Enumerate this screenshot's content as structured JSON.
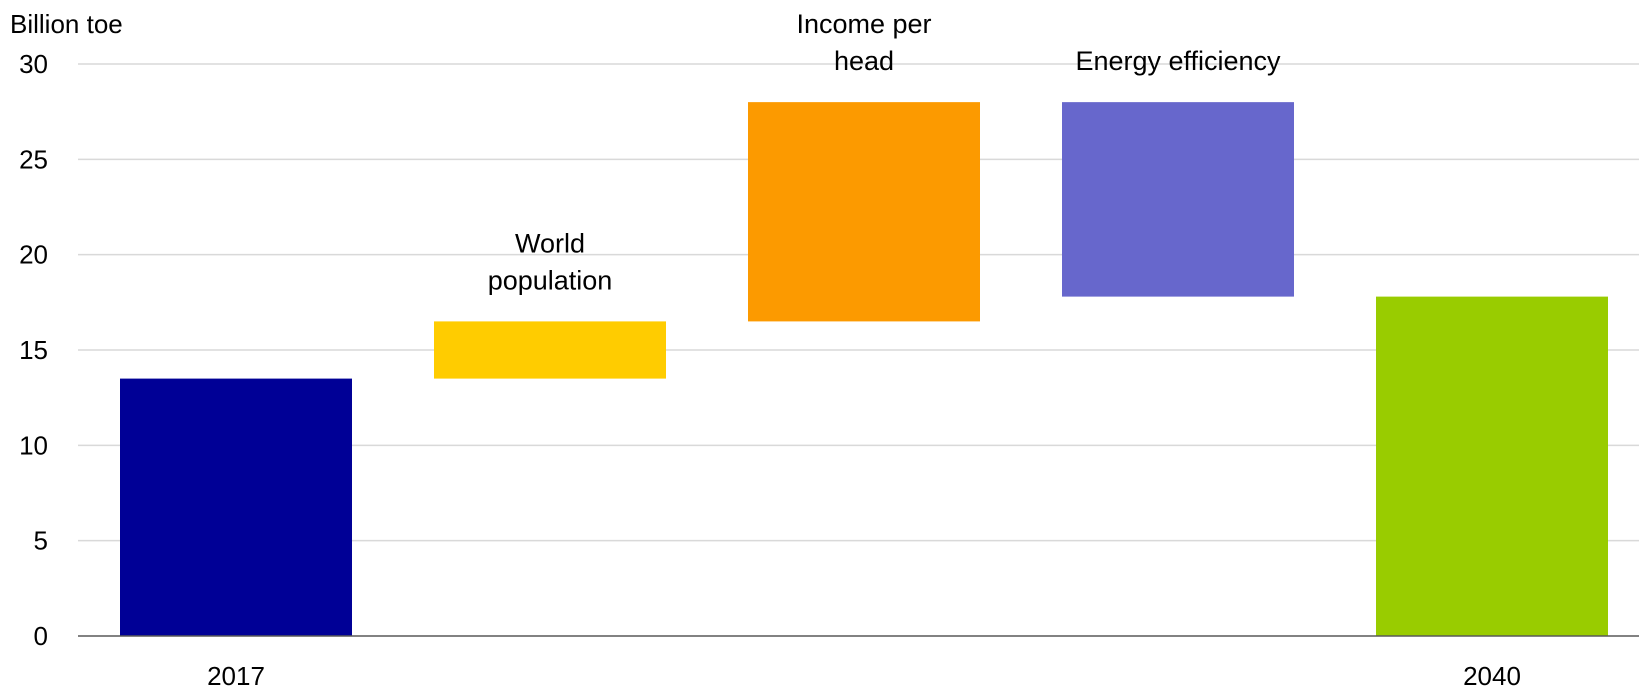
{
  "chart_data": {
    "type": "bar",
    "subtype": "waterfall",
    "ylabel": "Billion toe",
    "ylim": [
      0,
      30
    ],
    "yticks": [
      0,
      5,
      10,
      15,
      20,
      25,
      30
    ],
    "grid": true,
    "bars": [
      {
        "category": "2017",
        "annotation": [],
        "start": 0,
        "end": 13.5,
        "color": "#000096"
      },
      {
        "category": "",
        "annotation": [
          "World",
          "population"
        ],
        "start": 13.5,
        "end": 16.5,
        "color": "#ffcc00"
      },
      {
        "category": "",
        "annotation": [
          "Income per",
          "head"
        ],
        "start": 16.5,
        "end": 28,
        "color": "#fc9a00"
      },
      {
        "category": "",
        "annotation": [
          "Energy efficiency"
        ],
        "start": 28,
        "end": 17.8,
        "color": "#6767cc"
      },
      {
        "category": "2040",
        "annotation": [],
        "start": 0,
        "end": 17.8,
        "color": "#99cc00"
      }
    ]
  }
}
